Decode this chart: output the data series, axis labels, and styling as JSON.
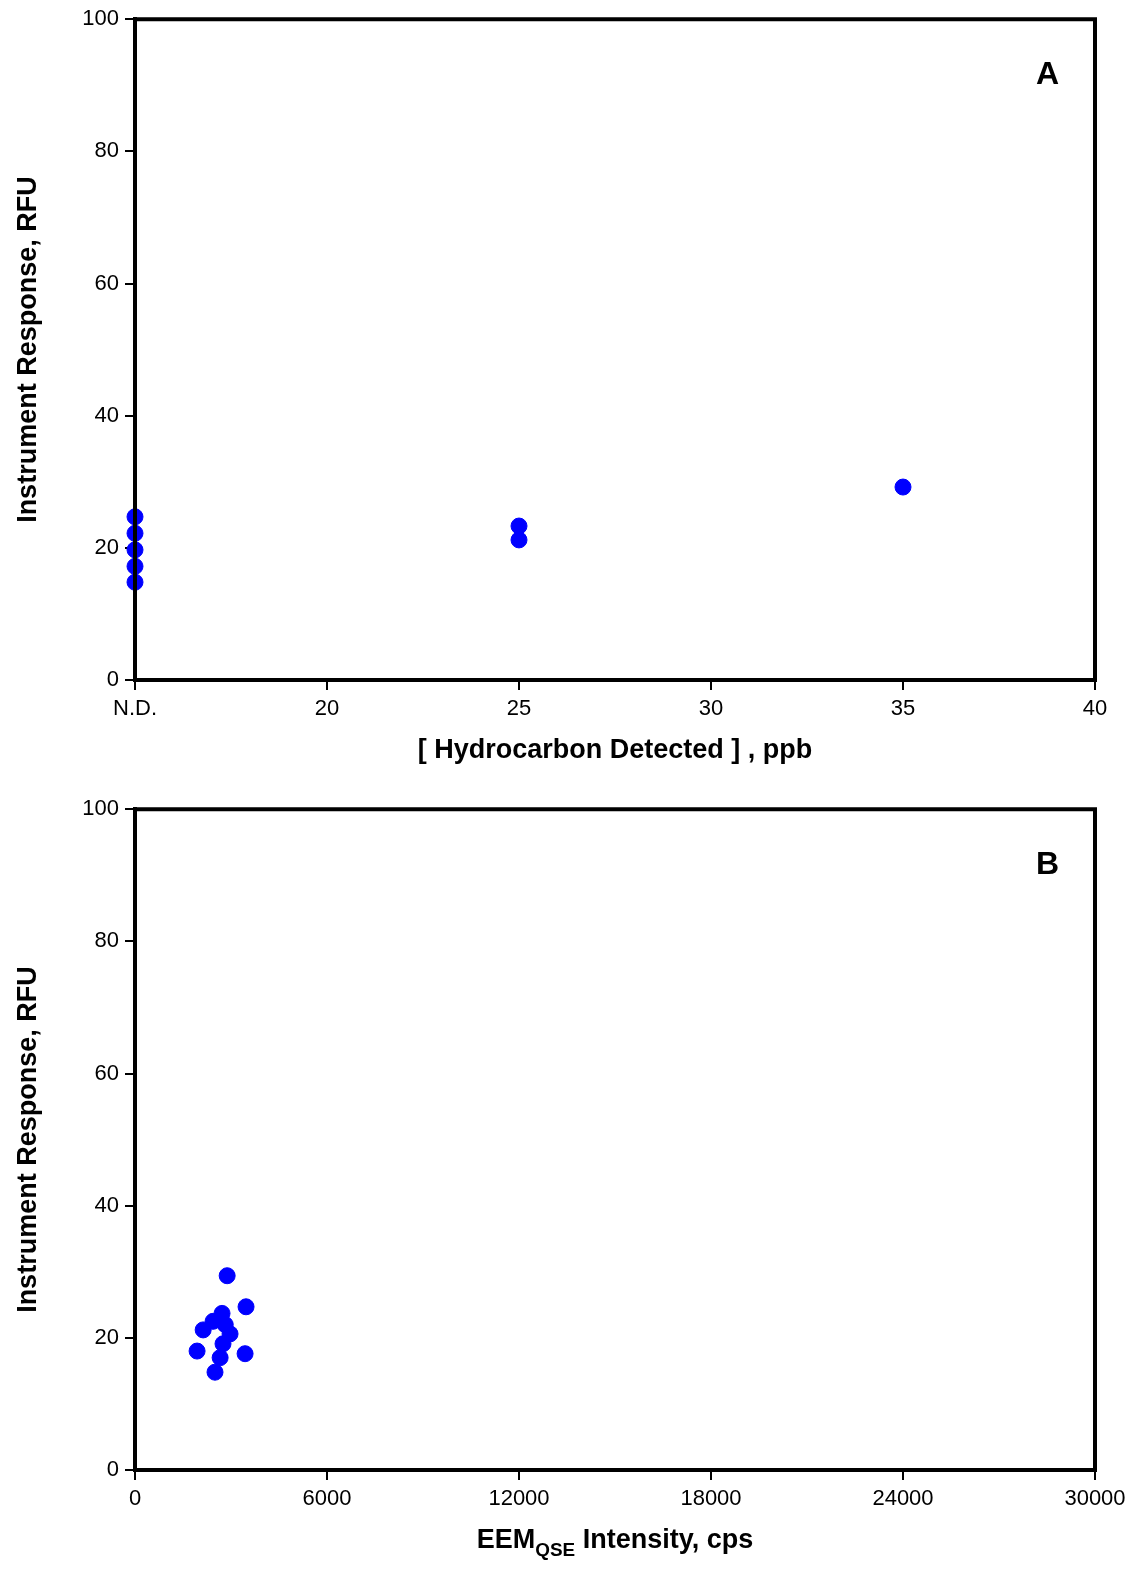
{
  "chart_data": [
    {
      "type": "scatter",
      "xlabel": "[ Hydrocarbon Detected ] , ppb",
      "ylabel": "Instrument Response, RFU",
      "annotations": [
        "A"
      ],
      "xlim": [
        15,
        40
      ],
      "xticks": [
        {
          "value": 15,
          "label": "N.D."
        },
        20,
        25,
        30,
        35,
        40
      ],
      "ylim": [
        0,
        100
      ],
      "yticks": [
        0,
        20,
        40,
        60,
        80,
        100
      ],
      "grid": false,
      "legend": false,
      "marker": "circle",
      "series": [
        {
          "color": "#0000ff",
          "x": [
            15,
            15,
            15,
            15,
            15,
            25,
            25,
            35
          ],
          "values": [
            24.7,
            22.2,
            19.7,
            17.2,
            14.8,
            23.3,
            21.2,
            29.2
          ]
        }
      ]
    },
    {
      "type": "scatter",
      "xlabel": "EEM$_{QSE}$ Intensity, cps",
      "ylabel": "Instrument Response, RFU",
      "annotations": [
        "B"
      ],
      "xlim": [
        0,
        30000
      ],
      "xticks": [
        0,
        6000,
        12000,
        18000,
        24000,
        30000
      ],
      "ylim": [
        0,
        100
      ],
      "yticks": [
        0,
        20,
        40,
        60,
        80,
        100
      ],
      "grid": false,
      "legend": false,
      "marker": "circle",
      "series": [
        {
          "color": "#0000ff",
          "x": [
            2880,
            3470,
            2720,
            2130,
            2970,
            1940,
            3440,
            2500,
            2660,
            2820,
            2440,
            2750
          ],
          "values": [
            29.4,
            24.7,
            23.7,
            21.2,
            20.6,
            18,
            17.6,
            14.8,
            17,
            22,
            22.5,
            19.1
          ]
        }
      ]
    }
  ]
}
